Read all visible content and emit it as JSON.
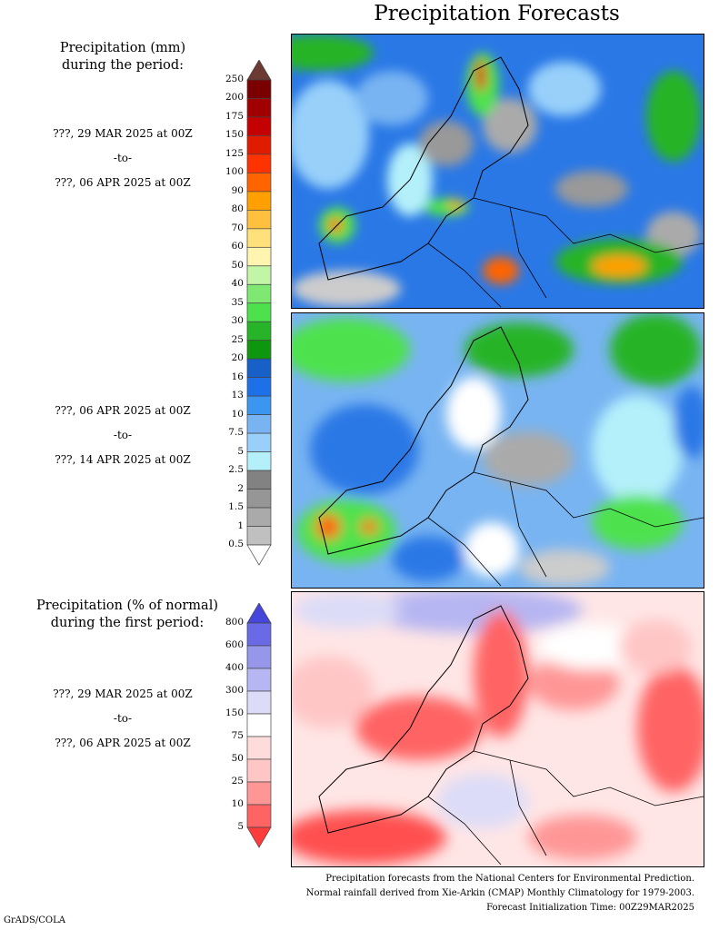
{
  "title": "Precipitation Forecasts",
  "amount_legend": {
    "header": [
      "Precipitation (mm)",
      "during the period:"
    ],
    "labels": [
      "250",
      "200",
      "175",
      "150",
      "125",
      "100",
      "90",
      "80",
      "70",
      "60",
      "50",
      "40",
      "35",
      "30",
      "25",
      "20",
      "16",
      "13",
      "10",
      "7.5",
      "5",
      "2.5",
      "2",
      "1.5",
      "1",
      "0.5"
    ],
    "colors": [
      "#7a0000",
      "#a00000",
      "#c40000",
      "#e01c00",
      "#ff3300",
      "#ff6400",
      "#ffa000",
      "#ffc040",
      "#ffe07a",
      "#fff5b0",
      "#c2f5a5",
      "#7ee872",
      "#4de24d",
      "#28b428",
      "#0f960f",
      "#1760c8",
      "#1e70e8",
      "#3c96f0",
      "#78b4f2",
      "#98d0fa",
      "#b4f0fa",
      "#828282",
      "#969696",
      "#aaaaaa",
      "#c0c0c0"
    ],
    "over_color": "#6b3a32",
    "under_color": "#ffffff"
  },
  "pct_legend": {
    "header": [
      "Precipitation (% of normal)",
      "during the first period:"
    ],
    "labels": [
      "800",
      "600",
      "400",
      "300",
      "150",
      "75",
      "50",
      "25",
      "10",
      "5"
    ],
    "colors": [
      "#6a6ae6",
      "#9696eb",
      "#b6b6f2",
      "#dcdcf8",
      "#ffffff",
      "#ffdcdc",
      "#ffc6c6",
      "#ff9696",
      "#ff6464"
    ],
    "over_color": "#4646dc",
    "under_color": "#ff3c3c"
  },
  "periods": [
    {
      "start": "???, 29 MAR 2025 at 00Z",
      "sep": "-to-",
      "end": "???, 06 APR 2025 at 00Z"
    },
    {
      "start": "???, 06 APR 2025 at 00Z",
      "sep": "-to-",
      "end": "???, 14 APR 2025 at 00Z"
    },
    {
      "start": "???, 29 MAR 2025 at 00Z",
      "sep": "-to-",
      "end": "???, 06 APR 2025 at 00Z"
    }
  ],
  "footer": [
    "Precipitation forecasts from the National Centers for Environmental Prediction.",
    "Normal rainfall derived from Xie-Arkin (CMAP) Monthly Climatology for 1979-2003.",
    "Forecast Initialization Time: 00Z29MAR2025"
  ],
  "credit": "GrADS/COLA"
}
